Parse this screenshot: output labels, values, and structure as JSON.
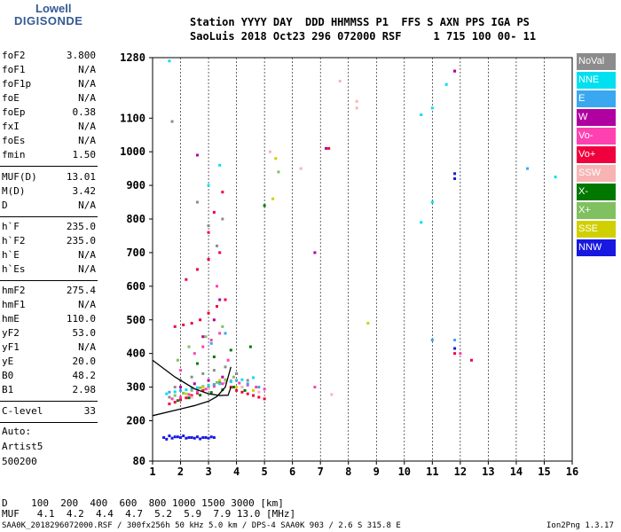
{
  "logo": {
    "line1": "Lowell",
    "line2": "DIGISONDE",
    "color": "#335a94"
  },
  "header": {
    "line1": "Station YYYY DAY  DDD HHMMSS P1  FFS S AXN PPS IGA PS",
    "line2": "SaoLuis 2018 Oct23 296 072000 RSF     1 715 100 00- 11"
  },
  "params": [
    {
      "name": "foF2",
      "value": "3.800"
    },
    {
      "name": "foF1",
      "value": "N/A"
    },
    {
      "name": "foF1p",
      "value": "N/A"
    },
    {
      "name": "foE",
      "value": "N/A"
    },
    {
      "name": "foEp",
      "value": "0.38"
    },
    {
      "name": "fxI",
      "value": "N/A"
    },
    {
      "name": "foEs",
      "value": "N/A"
    },
    {
      "name": "fmin",
      "value": "1.50"
    },
    {
      "name": "MUF(D)",
      "value": "13.01"
    },
    {
      "name": "M(D)",
      "value": "3.42"
    },
    {
      "name": "D",
      "value": "N/A"
    },
    {
      "name": "h`F",
      "value": "235.0"
    },
    {
      "name": "h`F2",
      "value": "235.0"
    },
    {
      "name": "h`E",
      "value": "N/A"
    },
    {
      "name": "h`Es",
      "value": "N/A"
    },
    {
      "name": "hmF2",
      "value": "275.4"
    },
    {
      "name": "hmF1",
      "value": "N/A"
    },
    {
      "name": "hmE",
      "value": "110.0"
    },
    {
      "name": "yF2",
      "value": "53.0"
    },
    {
      "name": "yF1",
      "value": "N/A"
    },
    {
      "name": "yE",
      "value": "20.0"
    },
    {
      "name": "B0",
      "value": "48.2"
    },
    {
      "name": "B1",
      "value": "2.98"
    },
    {
      "name": "C-level",
      "value": "33"
    }
  ],
  "auto": {
    "label": "Auto:",
    "artist": "Artist5",
    "version": "500200"
  },
  "legend": [
    {
      "label": "NoVal",
      "color": "#8c8c8c"
    },
    {
      "label": "NNE",
      "color": "#00e0f0"
    },
    {
      "label": "E",
      "color": "#3aa8f0"
    },
    {
      "label": "W",
      "color": "#b000a0"
    },
    {
      "label": "Vo-",
      "color": "#ff40b0"
    },
    {
      "label": "Vo+",
      "color": "#f0003c"
    },
    {
      "label": "SSW",
      "color": "#f8b4b4"
    },
    {
      "label": "X-",
      "color": "#007800"
    },
    {
      "label": "X+",
      "color": "#80c060"
    },
    {
      "label": "SSE",
      "color": "#d0d000"
    },
    {
      "label": "NNW",
      "color": "#1818e0"
    }
  ],
  "mufTable": {
    "line1": "D    100  200  400  600  800 1000 1500 3000 [km]",
    "line2": "MUF   4.1  4.2  4.4  4.7  5.2  5.9  7.9 13.0 [MHz]"
  },
  "footer": {
    "left": "SAA0K_2018296072000.RSF / 300fx256h 50 kHz 5.0 km / DPS-4 SAA0K 903 / 2.6 S 315.8 E",
    "right": "Ion2Png 1.3.17"
  },
  "chart_data": {
    "type": "scatter",
    "title": "",
    "xlabel": "",
    "ylabel": "",
    "xlim": [
      1,
      16
    ],
    "ylim": [
      80,
      1280
    ],
    "xticks": [
      1,
      2,
      3,
      4,
      5,
      6,
      7,
      8,
      9,
      10,
      11,
      12,
      13,
      14,
      15,
      16
    ],
    "yticks": [
      80,
      200,
      300,
      400,
      500,
      600,
      700,
      800,
      900,
      1000,
      1100,
      1280
    ],
    "ionogram_curve": {
      "x": [
        1.0,
        2.0,
        2.5,
        3.0,
        3.3,
        3.6,
        3.8
      ],
      "y": [
        215,
        235,
        245,
        258,
        272,
        300,
        360
      ]
    },
    "profile_curve": {
      "x": [
        1.0,
        1.8,
        2.5,
        3.0,
        3.4,
        3.7,
        3.8
      ],
      "y": [
        380,
        330,
        295,
        280,
        275,
        276,
        300
      ]
    },
    "series": [
      {
        "name": "Vo+",
        "color": "#f0003c",
        "x": [
          1.6,
          1.8,
          2.0,
          2.2,
          2.4,
          2.6,
          2.8,
          3.0,
          3.2,
          3.4,
          3.6,
          3.8,
          4.0,
          4.2,
          4.4,
          4.6,
          4.8,
          5.0,
          1.8,
          2.1,
          2.4,
          2.7,
          3.0,
          3.3,
          3.6,
          2.2,
          2.6,
          3.0,
          3.4,
          3.0,
          3.2,
          3.5,
          11.8,
          12.4,
          11.8,
          7.3
        ],
        "y": [
          250,
          255,
          262,
          268,
          275,
          282,
          290,
          298,
          305,
          312,
          320,
          300,
          290,
          285,
          280,
          275,
          270,
          265,
          480,
          485,
          490,
          500,
          520,
          540,
          560,
          620,
          650,
          680,
          700,
          760,
          820,
          880,
          1240,
          380,
          400,
          1010
        ]
      },
      {
        "name": "Vo-",
        "color": "#ff40b0",
        "x": [
          1.7,
          2.0,
          2.3,
          2.6,
          2.9,
          3.2,
          3.5,
          3.8,
          4.1,
          4.4,
          4.7,
          5.0,
          2.5,
          2.8,
          3.1,
          3.4,
          3.7,
          2.0,
          3.3,
          6.8,
          12.0
        ],
        "y": [
          265,
          270,
          278,
          286,
          294,
          302,
          310,
          318,
          312,
          306,
          300,
          294,
          400,
          420,
          440,
          460,
          380,
          350,
          600,
          300,
          400
        ]
      },
      {
        "name": "X+",
        "color": "#80c060",
        "x": [
          1.8,
          2.1,
          2.4,
          2.7,
          3.0,
          3.3,
          3.6,
          3.9,
          4.2,
          2.3,
          2.9,
          3.5,
          1.9,
          5.5
        ],
        "y": [
          275,
          282,
          290,
          298,
          306,
          314,
          322,
          330,
          300,
          420,
          450,
          480,
          380,
          940
        ]
      },
      {
        "name": "X-",
        "color": "#007800",
        "x": [
          1.9,
          2.3,
          2.7,
          3.1,
          3.5,
          3.9,
          4.3,
          2.6,
          3.2,
          3.8,
          5.0,
          4.5
        ],
        "y": [
          260,
          268,
          276,
          284,
          292,
          300,
          290,
          370,
          390,
          410,
          840,
          420
        ]
      },
      {
        "name": "NNE",
        "color": "#00e0f0",
        "x": [
          1.5,
          1.8,
          2.2,
          2.6,
          3.0,
          3.4,
          3.8,
          4.2,
          4.6,
          1.6,
          3.0,
          3.4,
          10.6,
          11.0,
          11.0,
          10.6,
          11.5,
          15.4
        ],
        "y": [
          280,
          286,
          292,
          298,
          304,
          310,
          316,
          322,
          328,
          1270,
          900,
          960,
          1110,
          850,
          1130,
          790,
          1200,
          925
        ]
      },
      {
        "name": "E",
        "color": "#3aa8f0",
        "x": [
          1.6,
          2.0,
          2.4,
          2.8,
          3.2,
          3.6,
          4.0,
          4.4,
          4.8,
          3.1,
          3.6,
          11.8,
          14.4,
          11.0
        ],
        "y": [
          285,
          290,
          296,
          302,
          308,
          314,
          320,
          310,
          300,
          430,
          460,
          440,
          950,
          440
        ]
      },
      {
        "name": "W",
        "color": "#b000a0",
        "x": [
          2.0,
          2.5,
          3.0,
          3.5,
          4.0,
          3.2,
          3.4,
          2.8,
          11.8,
          7.2,
          6.8,
          2.6
        ],
        "y": [
          300,
          310,
          320,
          330,
          340,
          500,
          560,
          450,
          1240,
          1010,
          700,
          990
        ]
      },
      {
        "name": "NNW",
        "color": "#1818e0",
        "x": [
          1.4,
          1.6,
          1.8,
          2.0,
          2.2,
          2.4,
          2.6,
          2.8,
          3.0,
          3.2,
          1.5,
          1.7,
          1.9,
          2.1,
          2.3,
          2.5,
          2.7,
          2.9,
          3.1,
          11.8,
          11.8,
          11.8
        ],
        "y": [
          150,
          155,
          152,
          150,
          148,
          150,
          152,
          150,
          148,
          150,
          145,
          148,
          152,
          155,
          150,
          148,
          146,
          150,
          152,
          920,
          935,
          415
        ]
      },
      {
        "name": "SSE",
        "color": "#d0d000",
        "x": [
          2.2,
          2.8,
          3.4,
          4.0,
          4.6,
          8.7,
          5.3,
          5.4
        ],
        "y": [
          280,
          300,
          320,
          300,
          290,
          490,
          860,
          980
        ]
      },
      {
        "name": "SSW",
        "color": "#f8b4b4",
        "x": [
          2.4,
          3.0,
          3.6,
          4.2,
          4.8,
          6.3,
          7.7,
          8.3,
          8.3,
          7.4,
          5.2
        ],
        "y": [
          270,
          295,
          315,
          300,
          285,
          950,
          1210,
          1130,
          1150,
          278,
          1000
        ]
      },
      {
        "name": "NoVal",
        "color": "#8c8c8c",
        "x": [
          1.6,
          1.8,
          2.0,
          2.4,
          2.8,
          3.2,
          3.6,
          4.0,
          4.4,
          1.7,
          2.6,
          3.0,
          3.3,
          3.5
        ],
        "y": [
          270,
          300,
          320,
          330,
          340,
          350,
          360,
          340,
          320,
          1090,
          850,
          780,
          720,
          800
        ]
      }
    ]
  }
}
